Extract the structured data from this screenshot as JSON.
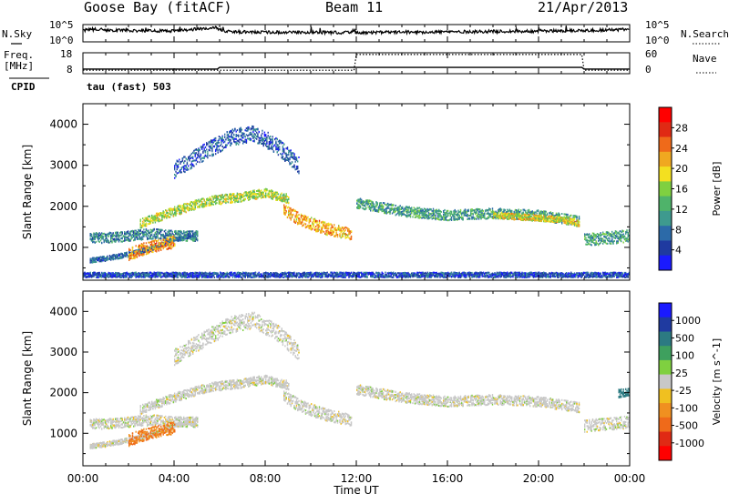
{
  "header": {
    "station": "Goose Bay (fitACF)",
    "beam": "Beam 11",
    "date": "21/Apr/2013"
  },
  "status_labels": {
    "nsky": "N.Sky",
    "nsky_tick_top": "10^5",
    "nsky_tick_bottom": "10^0",
    "nsearch": "N.Search",
    "nsearch_tick_top": "10^5",
    "nsearch_tick_bottom": "10^0",
    "freq_line1": "Freq.",
    "freq_line2": "[MHz]",
    "freq_tick_top": "18",
    "freq_tick_bottom": "8",
    "nave": "Nave",
    "nave_tick_top": "60",
    "nave_tick_bottom": "0",
    "cpid": "CPID",
    "cpid_value": "tau (fast) 503"
  },
  "colors": {
    "power_scale": [
      "#1a1aff",
      "#1f3aa0",
      "#2c6aa8",
      "#3e9a8e",
      "#4fb36a",
      "#7fd040",
      "#f3e020",
      "#f0a820",
      "#ef6a1a",
      "#e02a14",
      "#ff0000"
    ],
    "velocity_scale": [
      "#1a1aff",
      "#1f3aa0",
      "#2c7a82",
      "#3ea05e",
      "#7fd040",
      "#c8c8c8",
      "#f0c020",
      "#f09020",
      "#ef6a1a",
      "#e02a14",
      "#ff0000"
    ],
    "ground_scatter": "#bdbdbd",
    "axis": "#000000"
  },
  "chart_data": [
    {
      "type": "line",
      "panel": "N.Sky / N.Search",
      "x_unit": "hours UT",
      "xlim": [
        0,
        24
      ],
      "ylim_log10": [
        0,
        5
      ],
      "series": [
        {
          "name": "N.Sky",
          "x": [
            0,
            0.3,
            2,
            4,
            5.8,
            6.2,
            8,
            10,
            12,
            14,
            16,
            18,
            20,
            22,
            24
          ],
          "y_log10": [
            3.2,
            3.6,
            3.3,
            3.1,
            4.2,
            3.0,
            2.8,
            2.7,
            2.7,
            2.8,
            2.9,
            3.0,
            3.1,
            3.3,
            3.6
          ]
        }
      ]
    },
    {
      "type": "line",
      "panel": "Freq / Nave",
      "xlim": [
        0,
        24
      ],
      "series": [
        {
          "name": "Freq.",
          "ylim": [
            8,
            18
          ],
          "x": [
            0,
            5.9,
            6.0,
            11.9,
            12.0,
            21.9,
            22.0,
            24
          ],
          "y": [
            10.2,
            10.2,
            11.0,
            11.0,
            11.0,
            11.0,
            10.2,
            10.2
          ]
        },
        {
          "name": "Nave",
          "ylim": [
            0,
            60
          ],
          "x": [
            0,
            11.9,
            12.0,
            21.9,
            22.0,
            24
          ],
          "y": [
            10,
            10,
            55,
            55,
            10,
            10
          ]
        }
      ]
    },
    {
      "type": "heatmap",
      "panel": "power",
      "title": "",
      "xlabel": "",
      "ylabel": "Slant Range [km]",
      "colorbar_label": "Power [dB]",
      "colorbar_ticks": [
        4,
        8,
        12,
        16,
        20,
        24,
        28
      ],
      "clim": [
        0,
        30
      ],
      "xlim": [
        0,
        24
      ],
      "ylim": [
        200,
        4500
      ],
      "yticks": [
        1000,
        2000,
        3000,
        4000
      ],
      "bands": [
        {
          "x": [
            0.3,
            1.0,
            2.0,
            3.0,
            4.0,
            5.0
          ],
          "y": [
            700,
            750,
            850,
            1000,
            1200,
            1350
          ],
          "width_km": 120,
          "power_db": 6
        },
        {
          "x": [
            0.3,
            1.0,
            2.0,
            3.0,
            4.0,
            5.0
          ],
          "y": [
            1250,
            1250,
            1300,
            1350,
            1300,
            1300
          ],
          "width_km": 250,
          "power_db": 8
        },
        {
          "x": [
            2.0,
            3.0,
            4.0
          ],
          "y": [
            850,
            1050,
            1150
          ],
          "width_km": 300,
          "power_db": 22
        },
        {
          "x": [
            2.5,
            4.0,
            5.5,
            7.0,
            8.0,
            9.0
          ],
          "y": [
            1600,
            1900,
            2150,
            2250,
            2350,
            2200
          ],
          "width_km": 220,
          "power_db": 16
        },
        {
          "x": [
            8.8,
            9.5,
            10.5,
            11.3,
            11.8
          ],
          "y": [
            1950,
            1700,
            1500,
            1400,
            1350
          ],
          "width_km": 300,
          "power_db": 21
        },
        {
          "x": [
            12.0,
            14.0,
            16.0,
            18.0,
            20.0,
            21.8
          ],
          "y": [
            2100,
            1900,
            1800,
            1850,
            1800,
            1650
          ],
          "width_km": 250,
          "power_db": 10
        },
        {
          "x": [
            18.0,
            19.5,
            21.0,
            21.8
          ],
          "y": [
            1800,
            1750,
            1700,
            1600
          ],
          "width_km": 150,
          "power_db": 18
        },
        {
          "x": [
            22.0,
            23.0,
            24.0
          ],
          "y": [
            1200,
            1250,
            1300
          ],
          "width_km": 300,
          "power_db": 10
        },
        {
          "x": [
            4.0,
            5.5,
            6.5,
            7.5,
            8.5,
            9.5
          ],
          "y": [
            2900,
            3400,
            3700,
            3800,
            3500,
            3000
          ],
          "width_km": 400,
          "power_db": 5
        },
        {
          "x": [
            0,
            6,
            12,
            18,
            24
          ],
          "y": [
            350,
            350,
            350,
            350,
            350
          ],
          "width_km": 120,
          "power_db": 4
        }
      ]
    },
    {
      "type": "heatmap",
      "panel": "velocity",
      "title": "",
      "xlabel": "Time UT",
      "ylabel": "Slant Range [km]",
      "colorbar_label": "Velocity [m s^-1]",
      "colorbar_ticks": [
        1000,
        500,
        100,
        25,
        -25,
        -100,
        -500,
        -1000
      ],
      "xlim": [
        0,
        24
      ],
      "xticks": [
        "00:00",
        "04:00",
        "08:00",
        "12:00",
        "16:00",
        "20:00",
        "00:00"
      ],
      "ylim": [
        200,
        4500
      ],
      "yticks": [
        1000,
        2000,
        3000,
        4000
      ],
      "bands": [
        {
          "x": [
            0.3,
            1.0,
            2.0,
            3.0,
            4.0,
            5.0
          ],
          "y": [
            700,
            750,
            850,
            1000,
            1200,
            1350
          ],
          "width_km": 120,
          "velocity": 0
        },
        {
          "x": [
            0.3,
            1.0,
            2.0,
            3.0,
            4.0,
            5.0
          ],
          "y": [
            1250,
            1250,
            1300,
            1350,
            1300,
            1300
          ],
          "width_km": 250,
          "velocity": 0
        },
        {
          "x": [
            2.0,
            3.0,
            4.0
          ],
          "y": [
            850,
            1050,
            1150
          ],
          "width_km": 300,
          "velocity": -300
        },
        {
          "x": [
            2.5,
            4.0,
            5.5,
            7.0,
            8.0,
            9.0
          ],
          "y": [
            1600,
            1900,
            2150,
            2250,
            2350,
            2200
          ],
          "width_km": 220,
          "velocity": 0
        },
        {
          "x": [
            8.8,
            9.5,
            10.5,
            11.3,
            11.8
          ],
          "y": [
            1950,
            1700,
            1500,
            1400,
            1350
          ],
          "width_km": 300,
          "velocity": 0
        },
        {
          "x": [
            12.0,
            14.0,
            16.0,
            18.0,
            20.0,
            21.8
          ],
          "y": [
            2100,
            1900,
            1800,
            1850,
            1800,
            1650
          ],
          "width_km": 250,
          "velocity": 0
        },
        {
          "x": [
            22.0,
            23.0,
            24.0
          ],
          "y": [
            1200,
            1250,
            1300
          ],
          "width_km": 300,
          "velocity": 0
        },
        {
          "x": [
            23.5,
            24.0
          ],
          "y": [
            2000,
            2050
          ],
          "width_km": 200,
          "velocity": 200
        },
        {
          "x": [
            4.0,
            5.5,
            6.5,
            7.5,
            8.5,
            9.5
          ],
          "y": [
            2900,
            3400,
            3700,
            3800,
            3500,
            3000
          ],
          "width_km": 400,
          "velocity": 0
        }
      ]
    }
  ]
}
